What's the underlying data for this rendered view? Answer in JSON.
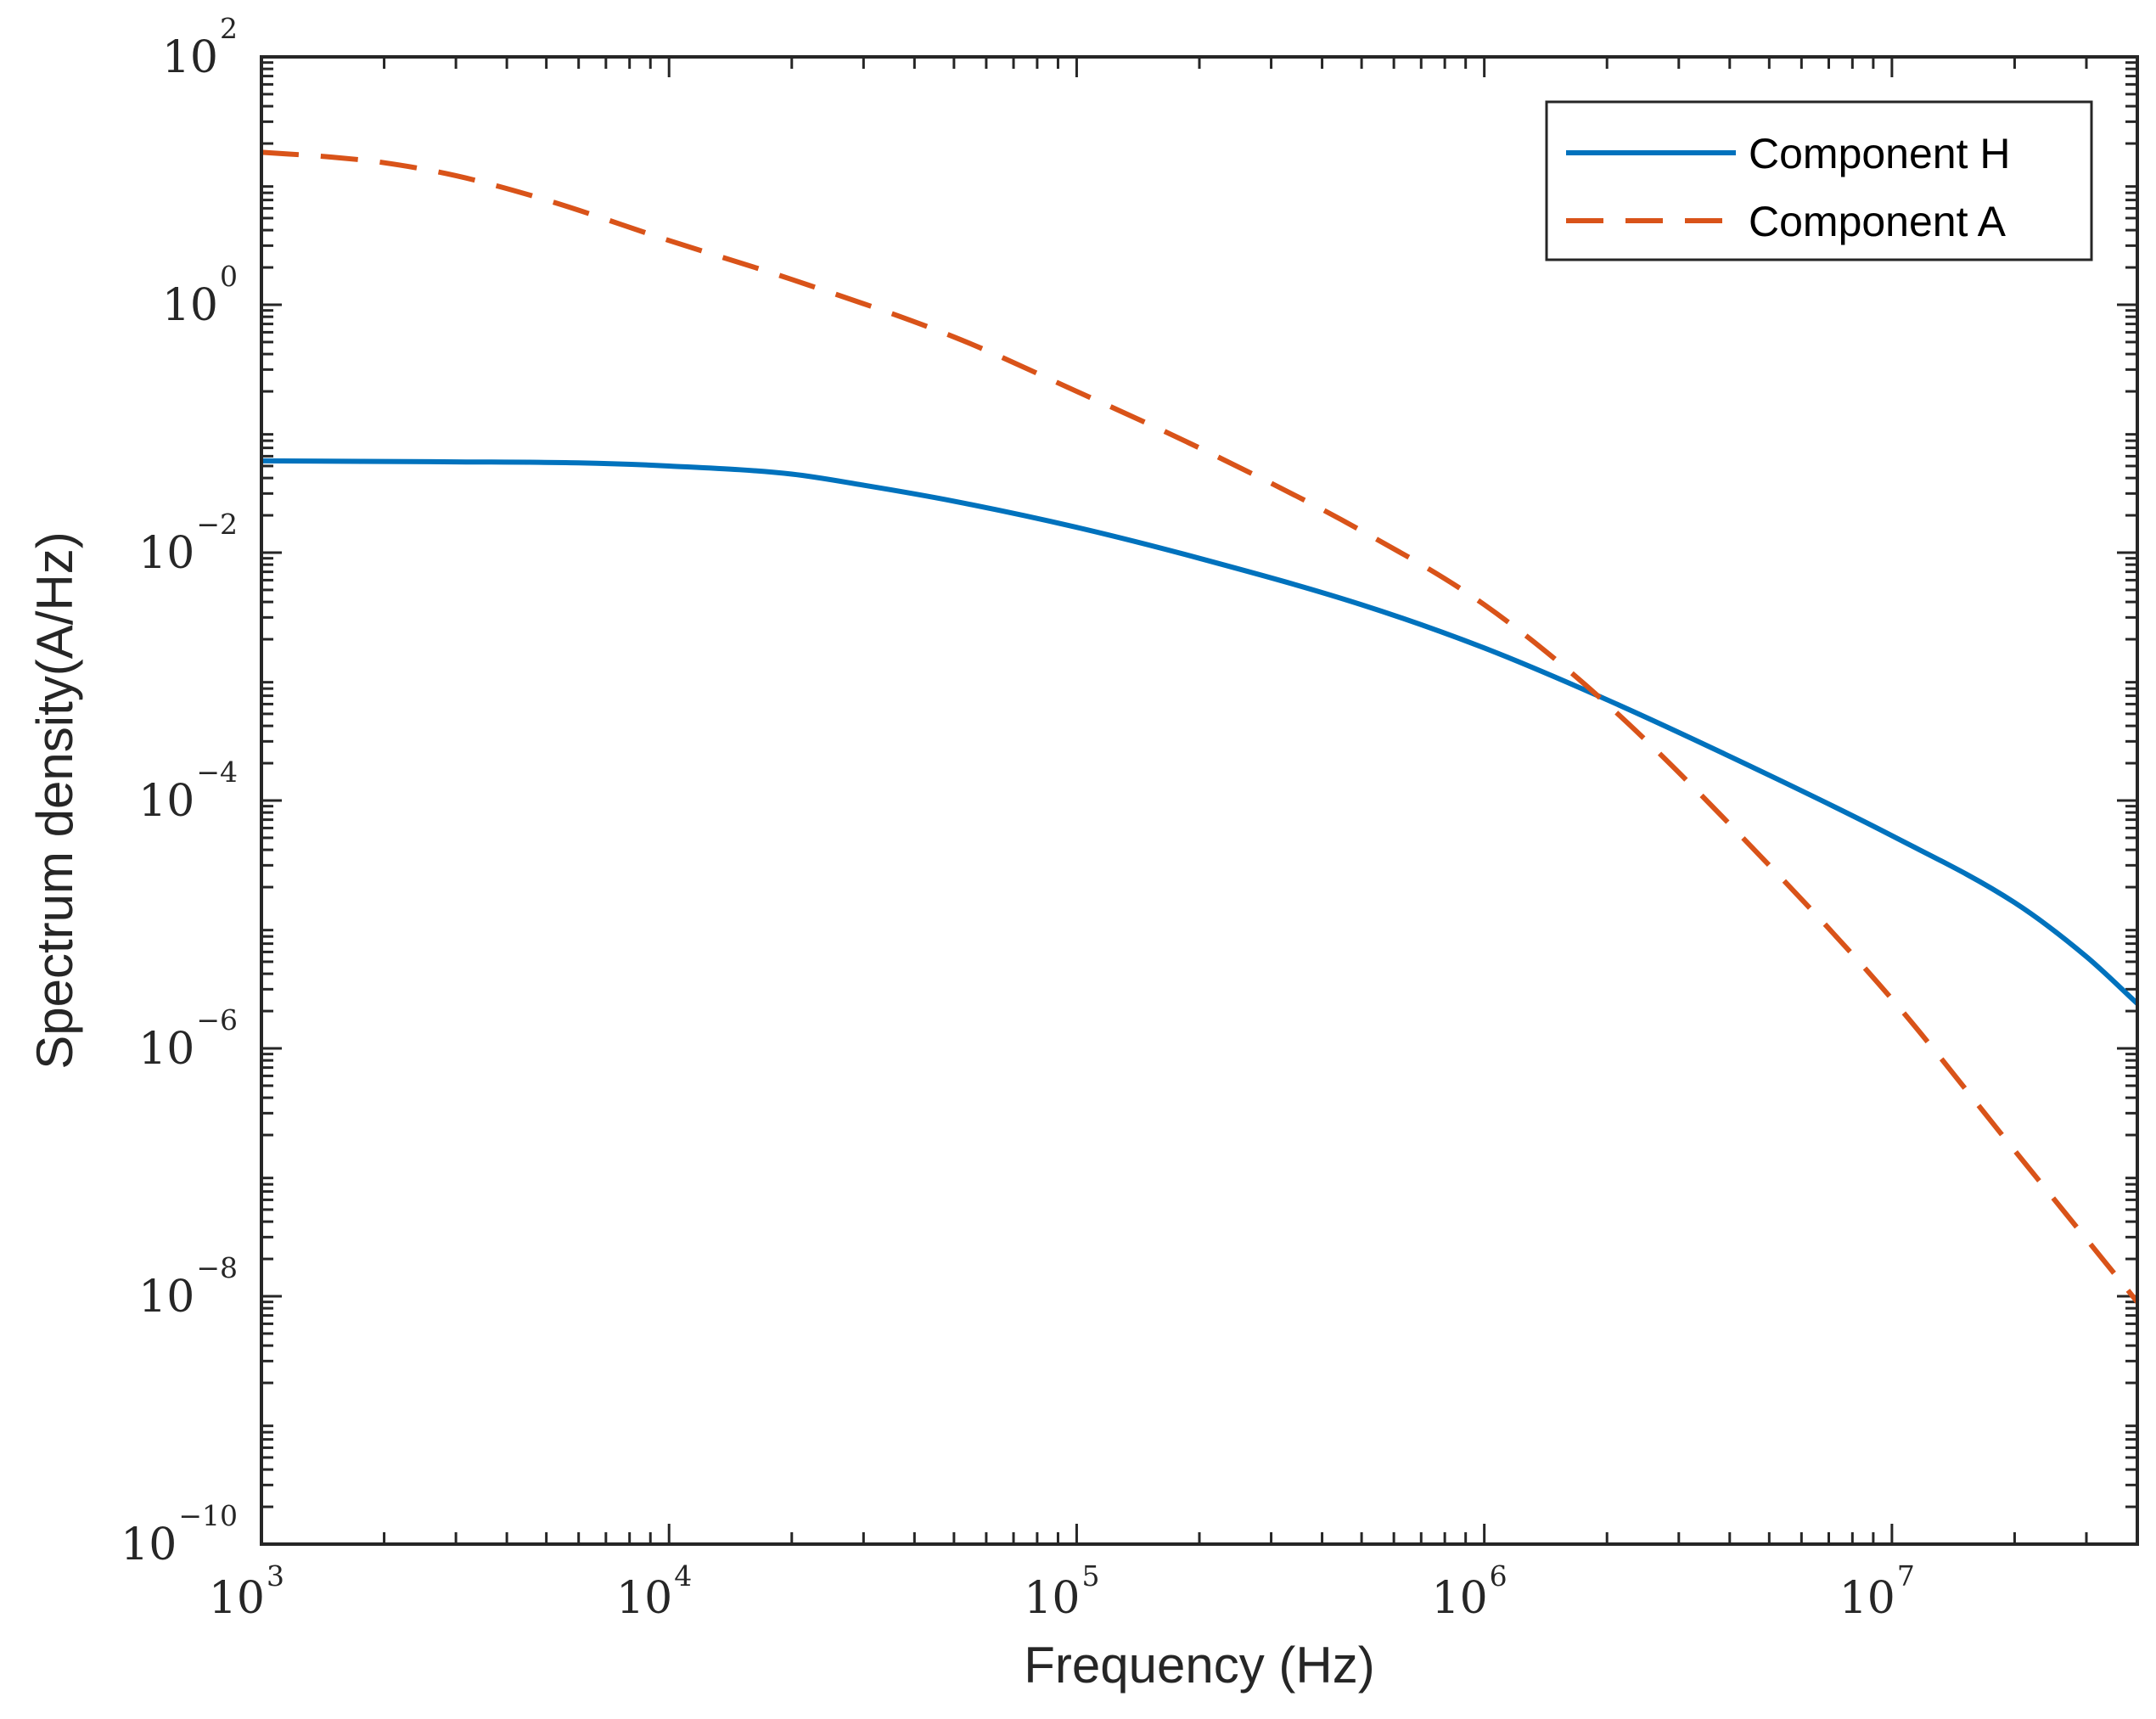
{
  "chart_data": {
    "type": "line",
    "title": "",
    "xlabel": "Frequency (Hz)",
    "ylabel": "Spectrum density(A/Hz)",
    "xscale": "log",
    "yscale": "log",
    "xlim": [
      1000,
      40000000
    ],
    "ylim": [
      1e-10,
      100
    ],
    "grid": false,
    "legend_position": "top-right",
    "x_ticks": [
      {
        "value": 1000,
        "base": "10",
        "exp": "3"
      },
      {
        "value": 10000,
        "base": "10",
        "exp": "4"
      },
      {
        "value": 100000,
        "base": "10",
        "exp": "5"
      },
      {
        "value": 1000000,
        "base": "10",
        "exp": "6"
      },
      {
        "value": 10000000,
        "base": "10",
        "exp": "7"
      }
    ],
    "y_ticks": [
      {
        "value": 1e-10,
        "base": "10",
        "exp": "−10"
      },
      {
        "value": 1e-08,
        "base": "10",
        "exp": "−8"
      },
      {
        "value": 1e-06,
        "base": "10",
        "exp": "−6"
      },
      {
        "value": 0.0001,
        "base": "10",
        "exp": "−4"
      },
      {
        "value": 0.01,
        "base": "10",
        "exp": "−2"
      },
      {
        "value": 1,
        "base": "10",
        "exp": "0"
      },
      {
        "value": 100,
        "base": "10",
        "exp": "2"
      }
    ],
    "series": [
      {
        "name": "Component H",
        "color": "#0072BD",
        "dash": "solid",
        "x": [
          1000,
          3000,
          6000,
          10000,
          20000,
          30000,
          50000,
          100000,
          200000,
          500000,
          1000000,
          2000000,
          5000000,
          10000000,
          20000000,
          30000000,
          40000000
        ],
        "y": [
          0.055,
          0.054,
          0.053,
          0.05,
          0.043,
          0.035,
          0.026,
          0.016,
          0.009,
          0.0038,
          0.0017,
          0.00065,
          0.00016,
          5.2e-05,
          1.5e-05,
          5.5e-06,
          2.3e-06
        ]
      },
      {
        "name": "Component A",
        "color": "#D95319",
        "dash": "dashed",
        "x": [
          1000,
          1500,
          2000,
          3000,
          5000,
          10000,
          20000,
          50000,
          100000,
          200000,
          500000,
          1000000,
          2000000,
          5000000,
          10000000,
          20000000,
          40000000
        ],
        "y": [
          17,
          15.5,
          14,
          11,
          7,
          3.3,
          1.6,
          0.55,
          0.2,
          0.07,
          0.015,
          0.0038,
          0.0006,
          3e-05,
          2.5e-06,
          1.5e-07,
          9e-09
        ]
      }
    ]
  }
}
